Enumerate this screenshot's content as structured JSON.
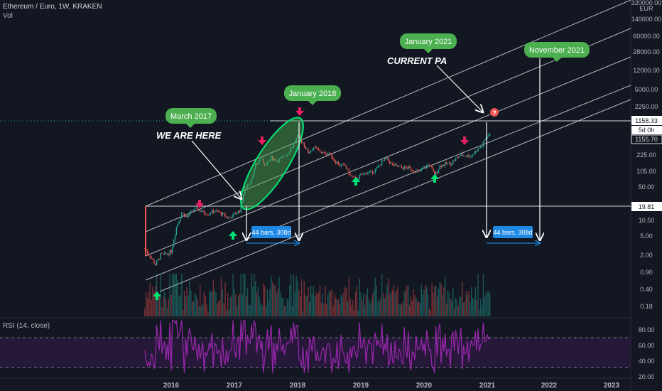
{
  "header": {
    "title": "Ethereum / Euro, 1W, KRAKEN",
    "vol_label": "Vol"
  },
  "rsi_header": "RSI (14, close)",
  "colors": {
    "background": "#131722",
    "up": "#26a69a",
    "down": "#ef5350",
    "channel": "#d1d4dc",
    "bubble": "#4caf50",
    "rsi": "#9c27b0",
    "measure": "#2196f3"
  },
  "chart_data": {
    "type": "candlestick",
    "symbol": "Ethereum / Euro",
    "interval": "1W",
    "exchange": "KRAKEN",
    "currency": "EUR",
    "y_scale": "log",
    "y_ticks": [
      "320000.00",
      "EUR",
      "140000.00",
      "60000.00",
      "28000.00",
      "12000.00",
      "5000.00",
      "2250.00",
      "1158.33",
      "5d 0h",
      "1155.70",
      "225.00",
      "105.00",
      "50.00",
      "19.81",
      "10.50",
      "5.00",
      "2.00",
      "0.90",
      "0.40",
      "0.18"
    ],
    "x_ticks": [
      "2016",
      "2017",
      "2018",
      "2019",
      "2020",
      "2021",
      "2022",
      "2023"
    ],
    "rsi_ticks": [
      "80.00",
      "60.00",
      "40.00",
      "20.00"
    ],
    "price_tags": {
      "last": "1158.33",
      "countdown": "5d 0h",
      "prev": "1155.70",
      "level": "19.81"
    },
    "annotations": {
      "march_2017": "March 2017",
      "january_2018": "January 2018",
      "january_2021": "January 2021",
      "november_2021": "November 2021",
      "we_are_here": "WE ARE HERE",
      "current_pa": "CURRENT PA",
      "measure_1": "44 bars, 308d",
      "measure_2": "44 bars, 308d",
      "question": "?"
    },
    "series": [
      {
        "points": [
          [
            "2015-08",
            1.2
          ],
          [
            "2015-09",
            0.75
          ],
          [
            "2015-10",
            0.45
          ],
          [
            "2015-11",
            0.8
          ],
          [
            "2015-12",
            0.85
          ],
          [
            "2016-01",
            1.0
          ],
          [
            "2016-02",
            4.5
          ],
          [
            "2016-03",
            10.5
          ],
          [
            "2016-04",
            8.0
          ],
          [
            "2016-05",
            12.0
          ],
          [
            "2016-06",
            13.0
          ],
          [
            "2016-07",
            11.0
          ],
          [
            "2016-08",
            10.0
          ],
          [
            "2016-09",
            11.5
          ],
          [
            "2016-10",
            11.0
          ],
          [
            "2016-11",
            9.0
          ],
          [
            "2016-12",
            7.5
          ],
          [
            "2017-01",
            9.5
          ],
          [
            "2017-02",
            12.0
          ],
          [
            "2017-03",
            45.0
          ],
          [
            "2017-04",
            70.0
          ],
          [
            "2017-05",
            180.0
          ],
          [
            "2017-06",
            280.0
          ],
          [
            "2017-07",
            180.0
          ],
          [
            "2017-08",
            300.0
          ],
          [
            "2017-09",
            250.0
          ],
          [
            "2017-10",
            280.0
          ],
          [
            "2017-11",
            380.0
          ],
          [
            "2017-12",
            600.0
          ],
          [
            "2018-01",
            1050.0
          ],
          [
            "2018-02",
            750.0
          ],
          [
            "2018-03",
            400.0
          ],
          [
            "2018-04",
            550.0
          ],
          [
            "2018-05",
            450.0
          ],
          [
            "2018-06",
            380.0
          ],
          [
            "2018-07",
            400.0
          ],
          [
            "2018-08",
            250.0
          ],
          [
            "2018-09",
            190.0
          ],
          [
            "2018-10",
            180.0
          ],
          [
            "2018-11",
            100.0
          ],
          [
            "2018-12",
            80.0
          ],
          [
            "2019-01",
            100.0
          ],
          [
            "2019-02",
            120.0
          ],
          [
            "2019-03",
            120.0
          ],
          [
            "2019-04",
            150.0
          ],
          [
            "2019-05",
            230.0
          ],
          [
            "2019-06",
            270.0
          ],
          [
            "2019-07",
            190.0
          ],
          [
            "2019-08",
            170.0
          ],
          [
            "2019-09",
            160.0
          ],
          [
            "2019-10",
            160.0
          ],
          [
            "2019-11",
            140.0
          ],
          [
            "2019-12",
            120.0
          ],
          [
            "2020-01",
            160.0
          ],
          [
            "2020-02",
            200.0
          ],
          [
            "2020-03",
            100.0
          ],
          [
            "2020-04",
            180.0
          ],
          [
            "2020-05",
            200.0
          ],
          [
            "2020-06",
            210.0
          ],
          [
            "2020-07",
            270.0
          ],
          [
            "2020-08",
            360.0
          ],
          [
            "2020-09",
            330.0
          ],
          [
            "2020-10",
            340.0
          ],
          [
            "2020-11",
            470.0
          ],
          [
            "2020-12",
            600.0
          ],
          [
            "2021-01",
            1158.33
          ]
        ]
      }
    ]
  }
}
